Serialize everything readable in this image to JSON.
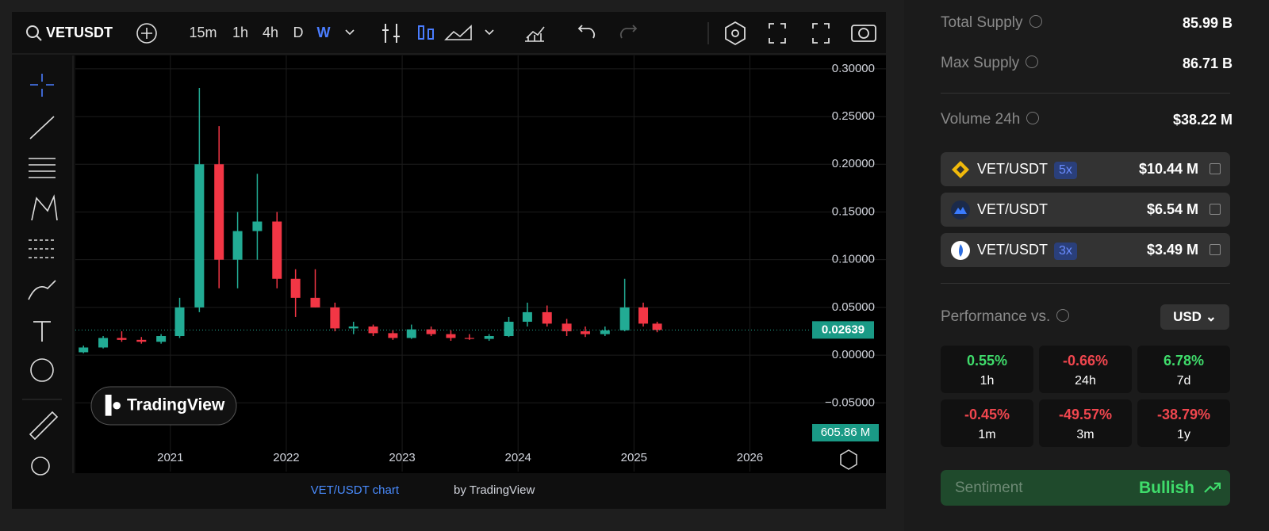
{
  "chart_data": {
    "type": "candlestick",
    "symbol": "VETUSDT",
    "intervals": [
      "15m",
      "1h",
      "4h",
      "D",
      "W"
    ],
    "x": [
      2020.25,
      2020.42,
      2020.58,
      2020.75,
      2020.92,
      2021.08,
      2021.25,
      2021.42,
      2021.58,
      2021.75,
      2021.92,
      2022.08,
      2022.25,
      2022.42,
      2022.58,
      2022.75,
      2022.92,
      2023.08,
      2023.25,
      2023.42,
      2023.58,
      2023.75,
      2023.92,
      2024.08,
      2024.25,
      2024.42,
      2024.58,
      2024.75,
      2024.92,
      2025.08,
      2025.2
    ],
    "open": [
      0.003,
      0.008,
      0.018,
      0.016,
      0.014,
      0.02,
      0.05,
      0.2,
      0.1,
      0.13,
      0.14,
      0.08,
      0.06,
      0.05,
      0.028,
      0.03,
      0.023,
      0.018,
      0.027,
      0.022,
      0.018,
      0.017,
      0.02,
      0.035,
      0.045,
      0.033,
      0.025,
      0.022,
      0.026,
      0.05,
      0.033
    ],
    "high": [
      0.01,
      0.02,
      0.025,
      0.019,
      0.022,
      0.06,
      0.28,
      0.24,
      0.15,
      0.19,
      0.15,
      0.09,
      0.09,
      0.055,
      0.035,
      0.032,
      0.026,
      0.032,
      0.03,
      0.026,
      0.022,
      0.022,
      0.04,
      0.055,
      0.052,
      0.038,
      0.03,
      0.03,
      0.08,
      0.055,
      0.035
    ],
    "low": [
      0.002,
      0.007,
      0.014,
      0.012,
      0.012,
      0.018,
      0.045,
      0.07,
      0.07,
      0.1,
      0.07,
      0.04,
      0.05,
      0.025,
      0.022,
      0.02,
      0.016,
      0.017,
      0.02,
      0.015,
      0.016,
      0.015,
      0.019,
      0.03,
      0.03,
      0.02,
      0.019,
      0.02,
      0.025,
      0.03,
      0.024
    ],
    "close": [
      0.008,
      0.018,
      0.016,
      0.014,
      0.02,
      0.05,
      0.2,
      0.1,
      0.13,
      0.14,
      0.08,
      0.06,
      0.05,
      0.028,
      0.03,
      0.023,
      0.018,
      0.027,
      0.022,
      0.018,
      0.017,
      0.02,
      0.035,
      0.045,
      0.033,
      0.025,
      0.022,
      0.026,
      0.05,
      0.033,
      0.02639
    ],
    "up_color": "#22ab94",
    "down_color": "#f23645",
    "last_price": {
      "value": 0.02639,
      "label": "0.02639"
    },
    "volume_label": "605.86 M",
    "xlim": [
      2020.18,
      2026.51
    ],
    "xticks": [
      2021,
      2022,
      2023,
      2024,
      2025,
      2026
    ],
    "ylim": [
      -0.122,
      0.314
    ],
    "yticks": [
      {
        "value": -0.05,
        "label": "−0.05000"
      },
      {
        "value": 0,
        "label": "0.00000"
      },
      {
        "value": 0.05,
        "label": "0.05000"
      },
      {
        "value": 0.1,
        "label": "0.10000"
      },
      {
        "value": 0.15,
        "label": "0.15000"
      },
      {
        "value": 0.2,
        "label": "0.20000"
      },
      {
        "value": 0.25,
        "label": "0.25000"
      },
      {
        "value": 0.3,
        "label": "0.30000"
      }
    ],
    "grid": true,
    "watermark": "TradingView",
    "footer_link": "VET/USDT chart",
    "footer_text": "by TradingView"
  },
  "stats": [
    {
      "label": "Total Supply",
      "value": "85.99 B"
    },
    {
      "label": "Max Supply",
      "value": "86.71 B"
    },
    {
      "label": "Volume 24h",
      "value": "$38.22 M"
    }
  ],
  "markets": [
    {
      "pair": "VET/USDT",
      "leverage": "5x",
      "value": "$10.44 M"
    },
    {
      "pair": "VET/USDT",
      "value": "$6.54 M"
    },
    {
      "pair": "VET/USDT",
      "leverage": "3x",
      "value": "$3.49 M"
    }
  ],
  "performance": {
    "title": "Performance vs.",
    "currency": "USD",
    "items": [
      {
        "value": "0.55%",
        "period": "1h"
      },
      {
        "value": "-0.66%",
        "period": "24h"
      },
      {
        "value": "6.78%",
        "period": "7d"
      },
      {
        "value": "-0.45%",
        "period": "1m"
      },
      {
        "value": "-49.57%",
        "period": "3m"
      },
      {
        "value": "-38.79%",
        "period": "1y"
      }
    ]
  },
  "sentiment": {
    "label": "Sentiment",
    "value": "Bullish"
  }
}
